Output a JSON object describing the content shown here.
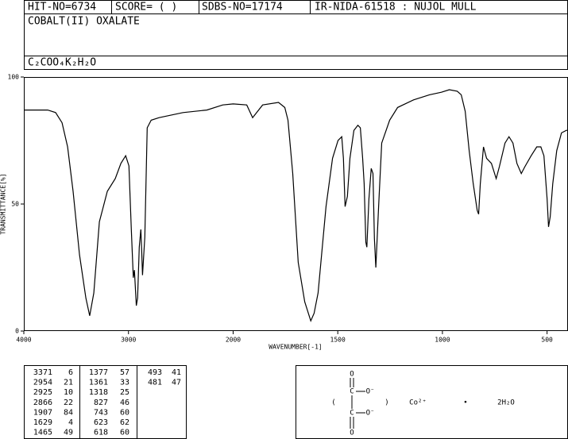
{
  "header": {
    "hit_no": "HIT-NO=6734",
    "score": "SCORE=  (   )",
    "sdbs_no": "SDBS-NO=17174",
    "method": "IR-NIDA-61518 : NUJOL MULL",
    "name": "COBALT(II) OXALATE",
    "formula": "C₂COO₄K₂H₂O"
  },
  "chart_data": {
    "type": "line",
    "xlabel": "WAVENUMBER[-1]",
    "ylabel": "TRANSMITTANCE[%]",
    "xlim": [
      4000,
      400
    ],
    "xticks": [
      4000,
      3000,
      2000,
      1500,
      1000,
      500
    ],
    "x_scale_break": 2000,
    "ylim": [
      0,
      100
    ],
    "yticks": [
      0,
      50,
      100
    ],
    "color": "#000000",
    "x": [
      4000,
      3772,
      3696,
      3635,
      3582,
      3529,
      3468,
      3407,
      3371,
      3331,
      3278,
      3202,
      3126,
      3072,
      3027,
      2996,
      2973,
      2954,
      2943,
      2925,
      2913,
      2897,
      2882,
      2875,
      2866,
      2844,
      2821,
      2783,
      2707,
      2479,
      2251,
      2099,
      2000,
      1935,
      1907,
      1859,
      1783,
      1753,
      1738,
      1715,
      1689,
      1658,
      1629,
      1613,
      1594,
      1556,
      1525,
      1499,
      1481,
      1473,
      1465,
      1454,
      1442,
      1423,
      1404,
      1392,
      1381,
      1374,
      1366,
      1361,
      1351,
      1340,
      1332,
      1325,
      1318,
      1305,
      1290,
      1252,
      1214,
      1138,
      1062,
      1005,
      967,
      929,
      910,
      891,
      872,
      853,
      834,
      827,
      819,
      804,
      789,
      766,
      743,
      728,
      701,
      682,
      663,
      644,
      623,
      606,
      576,
      549,
      530,
      515,
      500,
      493,
      485,
      473,
      454,
      431,
      408,
      400
    ],
    "values": [
      87,
      87,
      86,
      82,
      72.5,
      55,
      30,
      13,
      6,
      15,
      43,
      55,
      60,
      66,
      69,
      65,
      40,
      21,
      24,
      10,
      13,
      33,
      40,
      33,
      22,
      37,
      80,
      83,
      84,
      86,
      87,
      89,
      89.4,
      89,
      84,
      89,
      90,
      88,
      83,
      62,
      27,
      11.5,
      4,
      7,
      15,
      49,
      68,
      75,
      76.5,
      68,
      49,
      53,
      68,
      79,
      81,
      80,
      68,
      58,
      35,
      33,
      52,
      64,
      62,
      36.5,
      25,
      49,
      74,
      83,
      88,
      91,
      93,
      94,
      95,
      94.4,
      93,
      86.5,
      71,
      58,
      47.5,
      46,
      58,
      72.5,
      68,
      66,
      60,
      64.7,
      74,
      76.5,
      74,
      66,
      62,
      64.7,
      69,
      72.5,
      72.5,
      69,
      52,
      41,
      45,
      58,
      71,
      78,
      79,
      79
    ]
  },
  "peak_table": [
    [
      3371,
      6
    ],
    [
      2954,
      21
    ],
    [
      2925,
      10
    ],
    [
      2866,
      22
    ],
    [
      1907,
      84
    ],
    [
      1629,
      4
    ],
    [
      1465,
      49
    ],
    [
      1377,
      57
    ],
    [
      1361,
      33
    ],
    [
      1318,
      25
    ],
    [
      827,
      46
    ],
    [
      743,
      60
    ],
    [
      623,
      62
    ],
    [
      618,
      60
    ],
    [
      493,
      41
    ],
    [
      481,
      47
    ]
  ],
  "structure": {
    "o_top": "O",
    "c_top": "C",
    "o_minus_top": "O⁻",
    "c_bottom": "C",
    "o_minus_bottom": "O⁻",
    "o_bottom": "O",
    "paren_open": "(",
    "paren_close": ")",
    "cation": "Co²⁺",
    "dot": "•",
    "water": "2H₂O"
  }
}
